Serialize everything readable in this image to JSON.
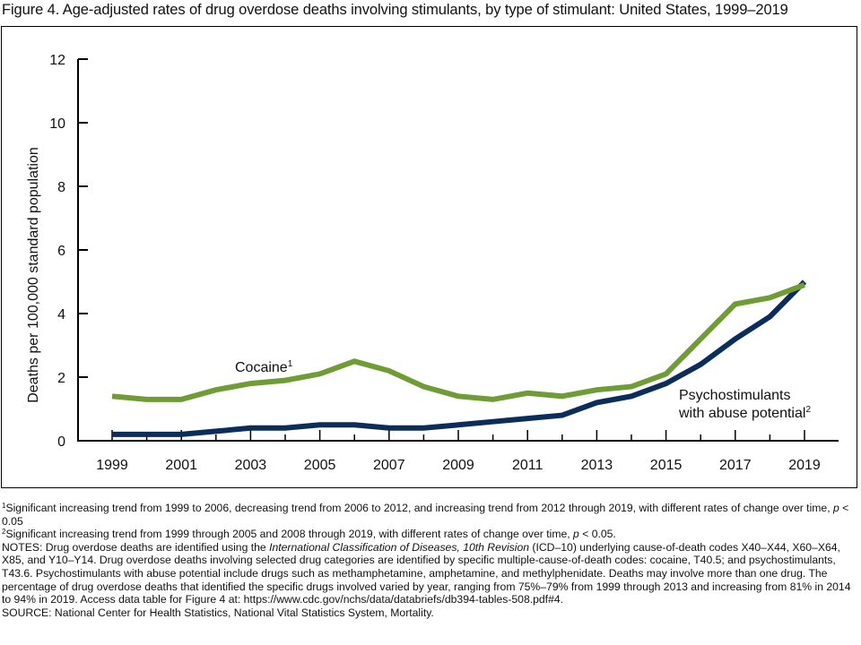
{
  "figure": {
    "title": "Figure 4. Age-adjusted rates of drug overdose deaths involving stimulants, by type of stimulant: United States, 1999–2019"
  },
  "chart_data": {
    "type": "line",
    "title": "Figure 4. Age-adjusted rates of drug overdose deaths involving stimulants, by type of stimulant: United States, 1999–2019",
    "xlabel": "",
    "ylabel": "Deaths per 100,000 standard population",
    "x": [
      1999,
      2000,
      2001,
      2002,
      2003,
      2004,
      2005,
      2006,
      2007,
      2008,
      2009,
      2010,
      2011,
      2012,
      2013,
      2014,
      2015,
      2016,
      2017,
      2018,
      2019
    ],
    "xticks": [
      "1999",
      "2001",
      "2003",
      "2005",
      "2007",
      "2009",
      "2011",
      "2013",
      "2015",
      "2017",
      "2019"
    ],
    "yticks": [
      "0",
      "2",
      "4",
      "6",
      "8",
      "10",
      "12"
    ],
    "ylim": [
      0,
      12
    ],
    "grid": false,
    "legend": "inline labels",
    "series": [
      {
        "name": "Cocaine",
        "label": "Cocaine",
        "footnote_ref": "1",
        "color": "#6f9c34",
        "values": [
          1.4,
          1.3,
          1.3,
          1.6,
          1.8,
          1.9,
          2.1,
          2.5,
          2.2,
          1.7,
          1.4,
          1.3,
          1.5,
          1.4,
          1.6,
          1.7,
          2.1,
          3.2,
          4.3,
          4.5,
          4.9
        ]
      },
      {
        "name": "Psychostimulants with abuse potential",
        "label_line1": "Psychostimulants",
        "label_line2": "with abuse potential",
        "footnote_ref": "2",
        "color": "#0b2d5b",
        "values": [
          0.2,
          0.2,
          0.2,
          0.3,
          0.4,
          0.4,
          0.5,
          0.5,
          0.4,
          0.4,
          0.5,
          0.6,
          0.7,
          0.8,
          1.2,
          1.4,
          1.8,
          2.4,
          3.2,
          3.9,
          5.0
        ]
      }
    ]
  },
  "notes": {
    "fn1_ref": "1",
    "fn1_text": "Significant increasing trend from 1999 to 2006, decreasing trend from 2006 to 2012, and increasing trend from 2012 through 2019, with different rates of change over time, ",
    "fn1_p": "p",
    "fn1_tail": " < 0.05",
    "fn2_ref": "2",
    "fn2_text": "Significant increasing trend from 1999 through 2005 and 2008 through 2019, with different rates of change over time, ",
    "fn2_p": "p",
    "fn2_tail": " < 0.05.",
    "notes_a": "NOTES: Drug overdose deaths are identified using the ",
    "notes_icd": "International Classification of Diseases, 10th Revision",
    "notes_b": " (ICD–10) underlying cause-of-death codes X40–X44, X60–X64, X85, and Y10–Y14. Drug overdose deaths involving selected drug categories are identified by specific multiple-cause-of-death codes: cocaine, T40.5; and psychostimulants, T43.6. Psychostimulants with abuse potential include drugs such as methamphetamine, amphetamine, and methylphenidate. Deaths may involve more than one drug. The percentage of drug overdose deaths that identified the specific drugs involved varied by year, ranging from 75%–79% from 1999 through 2013 and increasing from 81% in 2014 to 94% in 2019. Access data table for Figure 4 at: https://www.cdc.gov/nchs/data/databriefs/db394-tables-508.pdf#4.",
    "source": "SOURCE: National Center for Health Statistics, National Vital Statistics System, Mortality."
  }
}
